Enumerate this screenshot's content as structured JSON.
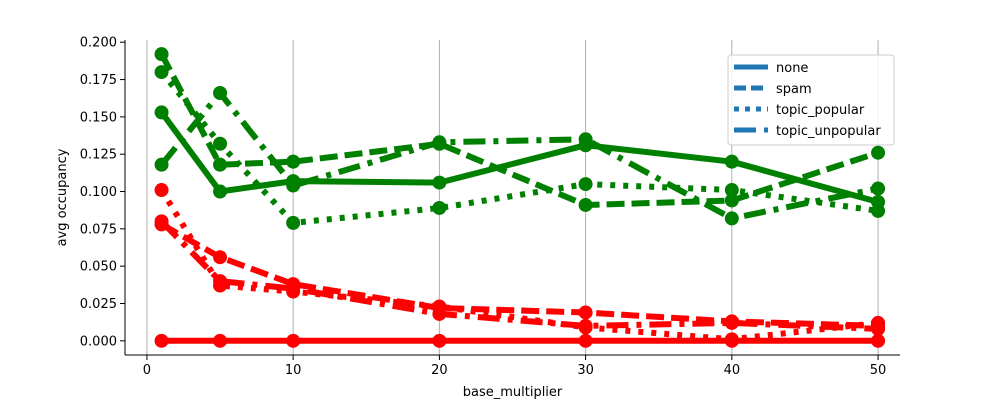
{
  "chart_data": {
    "type": "line",
    "title": "",
    "xlabel": "base_multiplier",
    "ylabel": "avg occupancy",
    "xlim": [
      -1.5,
      51.5
    ],
    "ylim": [
      -0.0095,
      0.2015
    ],
    "x_ticks": [
      0,
      10,
      20,
      30,
      40,
      50
    ],
    "y_ticks": [
      0.0,
      0.025,
      0.05,
      0.075,
      0.1,
      0.125,
      0.15,
      0.175,
      0.2
    ],
    "y_tick_labels": [
      "0.000",
      "0.025",
      "0.050",
      "0.075",
      "0.100",
      "0.125",
      "0.150",
      "0.175",
      "0.200"
    ],
    "grid": "x",
    "legend": {
      "position": "top-right",
      "color": "#1f77b4",
      "entries": [
        {
          "label": "none",
          "dash": "solid"
        },
        {
          "label": "spam",
          "dash": "dashed"
        },
        {
          "label": "topic_popular",
          "dash": "dotted"
        },
        {
          "label": "topic_unpopular",
          "dash": "dashdot"
        }
      ]
    },
    "x": [
      1,
      5,
      10,
      20,
      30,
      40,
      50
    ],
    "series": [
      {
        "style": "none",
        "color": "#008000",
        "values": [
          0.153,
          0.1,
          0.107,
          0.106,
          0.131,
          0.12,
          0.093
        ]
      },
      {
        "style": "spam",
        "color": "#008000",
        "values": [
          0.192,
          0.118,
          0.12,
          0.132,
          0.091,
          0.094,
          0.126
        ]
      },
      {
        "style": "topic_popular",
        "color": "#008000",
        "values": [
          0.18,
          0.132,
          0.079,
          0.089,
          0.105,
          0.101,
          0.087
        ]
      },
      {
        "style": "topic_unpopular",
        "color": "#008000",
        "values": [
          0.118,
          0.166,
          0.104,
          0.133,
          0.135,
          0.082,
          0.102
        ]
      },
      {
        "style": "none",
        "color": "#ff0000",
        "values": [
          0.0,
          0.0,
          0.0,
          0.0,
          0.0,
          0.0,
          0.0
        ]
      },
      {
        "style": "spam",
        "color": "#ff0000",
        "values": [
          0.078,
          0.056,
          0.038,
          0.022,
          0.019,
          0.013,
          0.01
        ]
      },
      {
        "style": "topic_popular",
        "color": "#ff0000",
        "values": [
          0.101,
          0.037,
          0.033,
          0.023,
          0.009,
          0.001,
          0.012
        ]
      },
      {
        "style": "topic_unpopular",
        "color": "#ff0000",
        "values": [
          0.08,
          0.04,
          0.035,
          0.018,
          0.01,
          0.012,
          0.008
        ]
      }
    ]
  }
}
